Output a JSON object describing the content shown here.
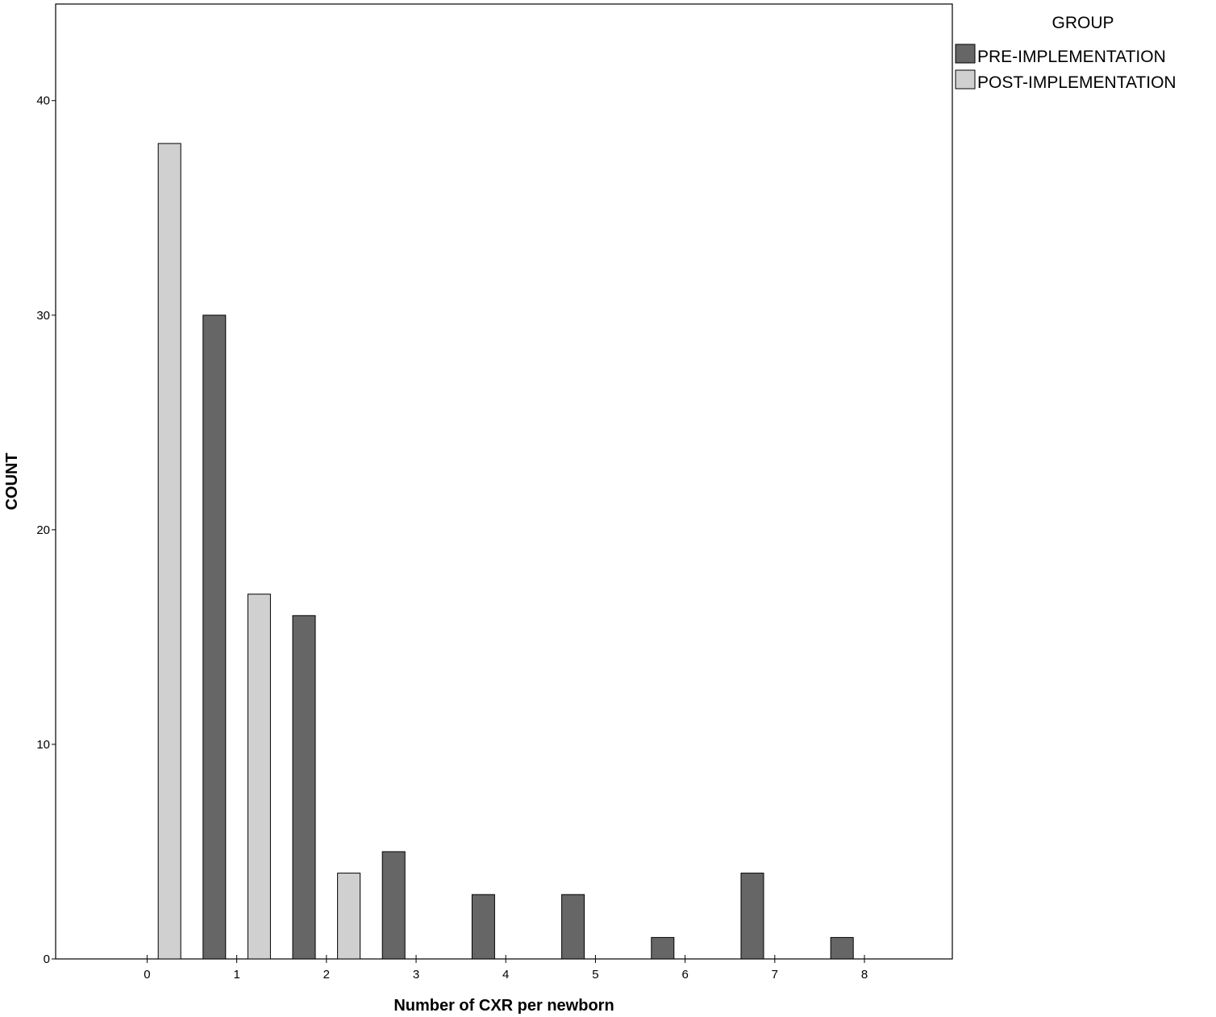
{
  "chart_data": {
    "type": "bar",
    "xlabel": "Number of CXR per newborn",
    "ylabel": "COUNT",
    "ylim": [
      0,
      44.5
    ],
    "xlim": [
      -1.02,
      8.98
    ],
    "x_ticks": [
      "0",
      "1",
      "2",
      "3",
      "4",
      "5",
      "6",
      "7",
      "8"
    ],
    "y_ticks": [
      "0",
      "10",
      "20",
      "30",
      "40"
    ],
    "y_tick_values": [
      0,
      10,
      20,
      30,
      40
    ],
    "categories": [
      0,
      1,
      2,
      3,
      4,
      5,
      6,
      7,
      8
    ],
    "legend": {
      "title": "GROUP",
      "position": "outside-top-right"
    },
    "series": [
      {
        "name": "PRE-IMPLEMENTATION",
        "color": "#666666",
        "values": [
          0,
          30,
          16,
          5,
          3,
          3,
          1,
          4,
          1
        ]
      },
      {
        "name": "POST-IMPLEMENTATION",
        "color": "#d0d0d0",
        "values": [
          38,
          17,
          4,
          0,
          0,
          0,
          0,
          0,
          0
        ]
      }
    ],
    "grid": false
  }
}
